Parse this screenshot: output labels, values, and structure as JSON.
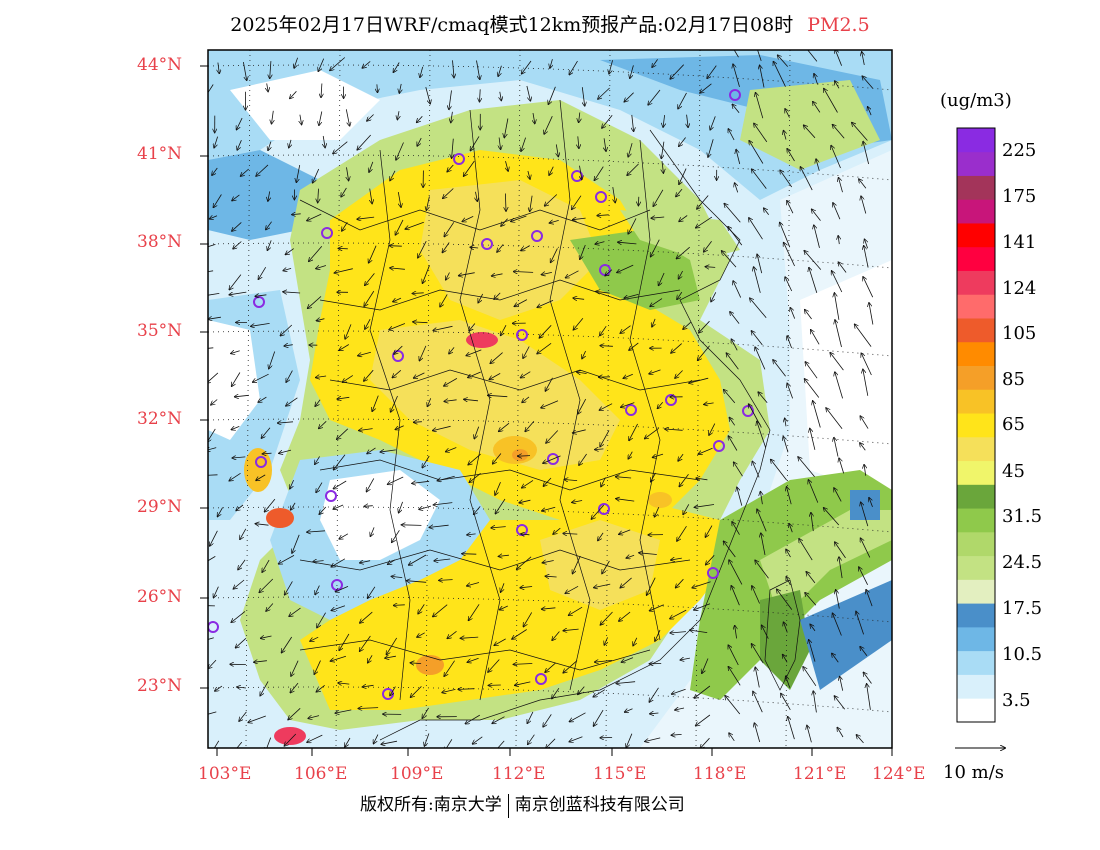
{
  "title": {
    "main": "2025年02月17日WRF/cmaq模式12km预报产品:02月17日08时",
    "pollutant": "PM2.5"
  },
  "map": {
    "lat_labels": [
      "44°N",
      "41°N",
      "38°N",
      "35°N",
      "32°N",
      "29°N",
      "26°N",
      "23°N"
    ],
    "lon_labels": [
      "103°E",
      "106°E",
      "109°E",
      "112°E",
      "115°E",
      "118°E",
      "121°E",
      "124°E"
    ]
  },
  "colorbar": {
    "unit": "(ug/m3)",
    "colors": [
      "#ffffff",
      "#d9f0fb",
      "#a9dcf5",
      "#6eb7e6",
      "#4a8fc9",
      "#e3efc0",
      "#c3e283",
      "#b0d86a",
      "#8fc94b",
      "#6aa63b",
      "#f0f56a",
      "#f5e05a",
      "#ffe41a",
      "#f8c226",
      "#f59f28",
      "#ff8b00",
      "#ee5b2b",
      "#ff6b6b",
      "#ee3b5e",
      "#ff0040",
      "#ff0000",
      "#c8157a",
      "#a3345a",
      "#9a2ecc",
      "#8a2be2"
    ],
    "labels": [
      "3.5",
      "10.5",
      "17.5",
      "24.5",
      "31.5",
      "45",
      "65",
      "85",
      "105",
      "124",
      "141",
      "175",
      "225"
    ]
  },
  "wind_reference": {
    "label": "10 m/s"
  },
  "footer": {
    "copyright": "版权所有:南京大学",
    "company": "南京创蓝科技有限公司"
  }
}
